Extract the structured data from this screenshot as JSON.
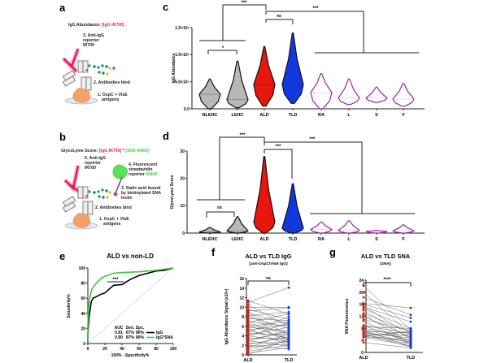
{
  "panels": {
    "a": {
      "letter": "a",
      "heading_prefix": "IgG Abundance: ",
      "heading_term": "[IgG IR700]",
      "step3": "3. Anti-IgG",
      "step3b": "reporter",
      "step3c": "IR700",
      "step2": "2.  Antibodies bind",
      "step1": "1.  OspC + VlsE",
      "step1b": "antigens"
    },
    "b": {
      "letter": "b",
      "heading_prefix": "GlycoLyme Score: ",
      "heading_term1": "[IgG IR700]",
      "heading_op": " * ",
      "heading_term2": "[SNA IR800]",
      "step5": "5. Anti-IgG",
      "step5b": "reporter",
      "step5c": "IR700",
      "step4": "4. Fluorescent",
      "step4b": "streptavidin",
      "step4c": "reporter ",
      "step4d": "IR800",
      "step3": "3. Sialic acid bound",
      "step3b": "by biotinylated SNA",
      "step3c": "lectin",
      "step2": "2.  Antibodies bind",
      "step1": "1.  OspC + VlsE",
      "step1b": "antigens"
    },
    "c": {
      "letter": "c"
    },
    "d": {
      "letter": "d"
    },
    "e": {
      "letter": "e"
    },
    "f": {
      "letter": "f"
    },
    "g": {
      "letter": "g"
    }
  },
  "colors": {
    "ir700": "#e8175d",
    "ir800": "#3fd13f",
    "ald": "#e8160c",
    "tld": "#1238e0",
    "control": "#b8b8b8",
    "other": "#a020a0",
    "roc_igg": "#000000",
    "roc_combo": "#3cc83c"
  },
  "chart_data": [
    {
      "id": "c",
      "type": "violin",
      "ylabel": "IgG Abundance",
      "categories": [
        "NLEHC",
        "LEHC",
        "ALD",
        "TLD",
        "RA",
        "L",
        "S",
        "F"
      ],
      "ylim": [
        0,
        150000
      ],
      "yticks": [
        "0.0",
        "5.0×10⁴",
        "1.0×10⁵",
        "1.5×10⁵"
      ],
      "ytick_values": [
        0,
        50000,
        100000,
        150000
      ],
      "summary": [
        {
          "min": 0,
          "median": 27000,
          "max": 55000,
          "group": "control"
        },
        {
          "min": 2000,
          "median": 17000,
          "max": 88000,
          "group": "control"
        },
        {
          "min": 5000,
          "median": 45000,
          "max": 115000,
          "group": "ald"
        },
        {
          "min": 10000,
          "median": 45000,
          "max": 140000,
          "group": "tld"
        },
        {
          "min": 0,
          "median": 30000,
          "max": 65000,
          "group": "other"
        },
        {
          "min": 8000,
          "median": 20000,
          "max": 55000,
          "group": "other"
        },
        {
          "min": 12000,
          "median": 20000,
          "max": 40000,
          "group": "other"
        },
        {
          "min": 5000,
          "median": 18000,
          "max": 47000,
          "group": "other"
        }
      ],
      "significance": [
        "***",
        "*",
        "ns",
        "***"
      ]
    },
    {
      "id": "d",
      "type": "violin",
      "ylabel": "GlycoLyme Score",
      "categories": [
        "NLEHC",
        "LEHC",
        "ALD",
        "TLD",
        "RA",
        "L",
        "S",
        "F"
      ],
      "ylim": [
        0,
        30
      ],
      "yticks": [
        "0",
        "10",
        "20",
        "30"
      ],
      "ytick_values": [
        0,
        10,
        20,
        30
      ],
      "summary": [
        {
          "min": 0,
          "median": 0.4,
          "max": 2,
          "group": "control"
        },
        {
          "min": 0,
          "median": 0.8,
          "max": 6,
          "group": "control"
        },
        {
          "min": 0,
          "median": 4,
          "max": 28,
          "group": "ald"
        },
        {
          "min": 0,
          "median": 1.8,
          "max": 18,
          "group": "tld"
        },
        {
          "min": 0,
          "median": 1.3,
          "max": 4,
          "group": "other"
        },
        {
          "min": 0,
          "median": 1,
          "max": 4.5,
          "group": "other"
        },
        {
          "min": 0,
          "median": 0.6,
          "max": 1,
          "group": "other"
        },
        {
          "min": 0,
          "median": 0.8,
          "max": 3,
          "group": "other"
        }
      ],
      "significance": [
        "***",
        "ns",
        "***",
        "***"
      ]
    },
    {
      "id": "e",
      "type": "line",
      "title": "ALD vs non-LD",
      "xlabel": "100% - Specificity%",
      "ylabel": "Sensitivity%",
      "xlim": [
        0,
        100
      ],
      "ylim": [
        0,
        100
      ],
      "ticks": [
        "0",
        "20",
        "40",
        "60",
        "80",
        "100"
      ],
      "significance": "***",
      "table_header": [
        "AUC",
        "Sen.",
        "Spc."
      ],
      "series": [
        {
          "name": "IgG",
          "auc": "0.81",
          "sen": "67%",
          "spc": "80%",
          "x": [
            0,
            0,
            1,
            2,
            4,
            6,
            10,
            15,
            20,
            25,
            30,
            40,
            50,
            60,
            70,
            80,
            90,
            100
          ],
          "y": [
            0,
            12,
            30,
            40,
            55,
            60,
            62,
            65,
            67,
            72,
            77,
            78,
            85,
            90,
            93,
            96,
            97,
            100
          ]
        },
        {
          "name": "IgG*SNA",
          "auc": "0.90",
          "sen": "87%",
          "spc": "80%",
          "x": [
            0,
            0,
            1,
            3,
            5,
            10,
            15,
            20,
            30,
            40,
            60,
            80,
            100
          ],
          "y": [
            0,
            25,
            50,
            65,
            73,
            80,
            86,
            89,
            93,
            94,
            95,
            97,
            100
          ]
        }
      ]
    },
    {
      "id": "f",
      "type": "paired",
      "title": "ALD vs TLD IgG",
      "subtitle": "[anti-OspC/VlsE IgG]",
      "ylabel": "IgG Abundance Signal (x10⁴)",
      "categories": [
        "ALD",
        "TLD"
      ],
      "ylim": [
        0,
        16
      ],
      "yticks": [
        "0",
        "2",
        "4",
        "6",
        "8",
        "10",
        "12",
        "14",
        "16"
      ],
      "significance": "ns",
      "pairs": [
        [
          11.4,
          8.5
        ],
        [
          11,
          14.1
        ],
        [
          10.5,
          6
        ],
        [
          10,
          10
        ],
        [
          9.5,
          7.5
        ],
        [
          9.2,
          9.8
        ],
        [
          9,
          4
        ],
        [
          8.8,
          6.5
        ],
        [
          8.5,
          3
        ],
        [
          8.2,
          9
        ],
        [
          8,
          5.5
        ],
        [
          7.6,
          7.2
        ],
        [
          7.2,
          2.5
        ],
        [
          7,
          6
        ],
        [
          6.8,
          8.6
        ],
        [
          6.5,
          4.5
        ],
        [
          6.2,
          3.2
        ],
        [
          6,
          7
        ],
        [
          5.8,
          5
        ],
        [
          5.5,
          2
        ],
        [
          5.2,
          6.4
        ],
        [
          5,
          3.6
        ],
        [
          4.8,
          8
        ],
        [
          4.5,
          4.2
        ],
        [
          4.2,
          5.8
        ],
        [
          4,
          2.8
        ],
        [
          3.8,
          6.8
        ],
        [
          3.5,
          3.4
        ],
        [
          3.2,
          4.8
        ],
        [
          3,
          1.8
        ],
        [
          2.8,
          5.2
        ],
        [
          2.5,
          2.6
        ],
        [
          2.2,
          3.8
        ],
        [
          2,
          1.2
        ],
        [
          1.8,
          2.2
        ],
        [
          1.5,
          4.4
        ],
        [
          1.2,
          3
        ],
        [
          0.8,
          2
        ],
        [
          0.4,
          1.5
        ],
        [
          0,
          3.3
        ]
      ]
    },
    {
      "id": "g",
      "type": "paired",
      "title": "ALD vs TLD SNA",
      "subtitle": "[SNA]",
      "ylabel": "SNA Fluorescence",
      "categories": [
        "ALD",
        "TLD"
      ],
      "ylim": [
        0,
        24
      ],
      "yticks": [
        "0",
        "4",
        "8",
        "12",
        "16",
        "20",
        "24"
      ],
      "significance": "****",
      "pairs": [
        [
          22.2,
          7.5
        ],
        [
          20,
          6
        ],
        [
          18.3,
          12.5
        ],
        [
          16.3,
          14.8
        ],
        [
          16,
          11.5
        ],
        [
          15.5,
          5.5
        ],
        [
          15,
          10.2
        ],
        [
          14.5,
          8
        ],
        [
          14,
          4.5
        ],
        [
          13,
          6.8
        ],
        [
          12.5,
          3
        ],
        [
          12,
          5
        ],
        [
          11,
          7.2
        ],
        [
          10.5,
          2.5
        ],
        [
          9,
          6.2
        ],
        [
          8.8,
          3.8
        ],
        [
          8.5,
          8
        ],
        [
          8,
          5.2
        ],
        [
          7.6,
          4
        ],
        [
          7.3,
          2
        ],
        [
          7,
          6.5
        ],
        [
          6.8,
          3.2
        ],
        [
          6.5,
          4.8
        ],
        [
          6.2,
          1.8
        ],
        [
          6,
          5.8
        ],
        [
          5.8,
          3.5
        ],
        [
          5.5,
          2.8
        ],
        [
          5.3,
          7
        ],
        [
          5.2,
          4.2
        ],
        [
          5,
          2.2
        ],
        [
          3.3,
          1.5
        ]
      ]
    }
  ]
}
